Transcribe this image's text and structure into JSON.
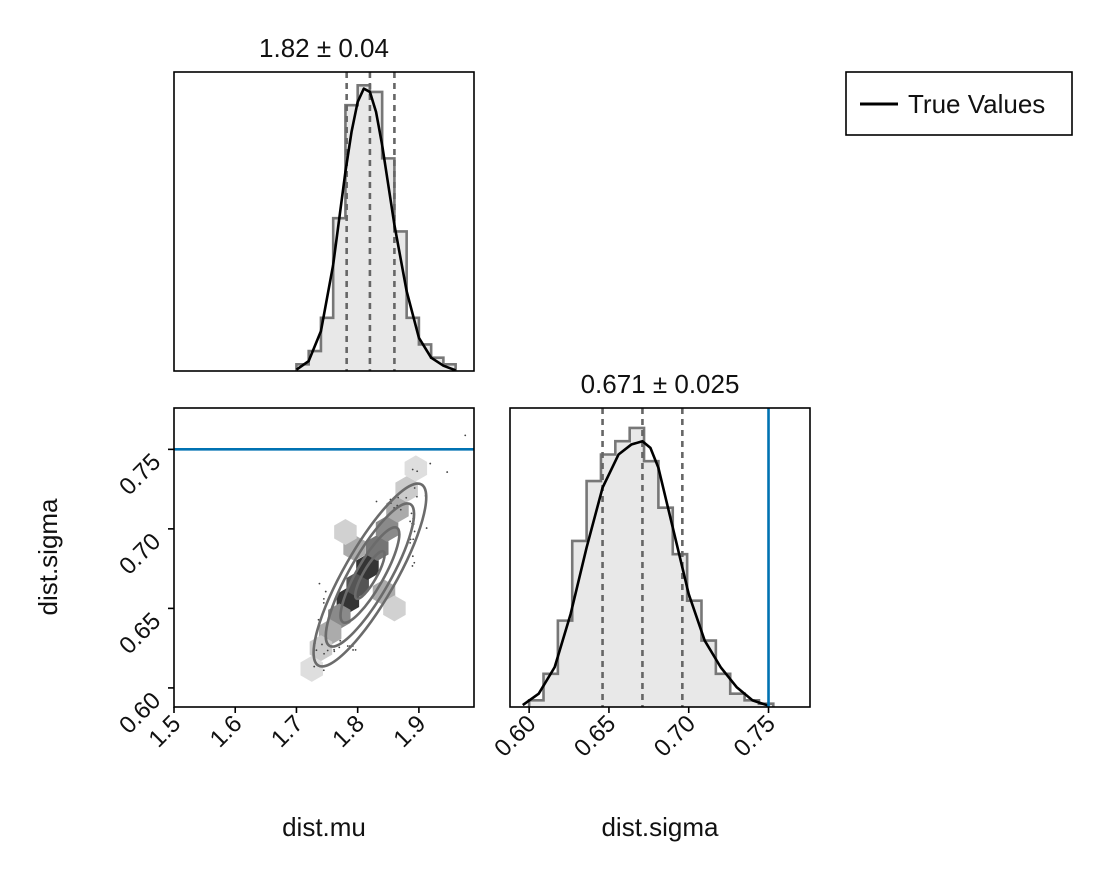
{
  "chart_data": [
    {
      "panel": "dist.mu marginal",
      "type": "histogram",
      "title": "1.82 ± 0.04",
      "xlim": [
        1.5,
        1.99
      ],
      "ylim": [
        0,
        0.45
      ],
      "quantiles": [
        1.782,
        1.82,
        1.86
      ],
      "bins": {
        "edges": [
          1.7,
          1.72,
          1.74,
          1.76,
          1.78,
          1.8,
          1.82,
          1.84,
          1.86,
          1.88,
          1.9,
          1.92,
          1.94,
          1.96
        ],
        "counts": [
          0.01,
          0.03,
          0.08,
          0.23,
          0.4,
          0.43,
          0.42,
          0.32,
          0.21,
          0.08,
          0.04,
          0.02,
          0.01
        ]
      },
      "kde": {
        "x": [
          1.7,
          1.72,
          1.74,
          1.76,
          1.78,
          1.79,
          1.8,
          1.81,
          1.82,
          1.83,
          1.84,
          1.85,
          1.86,
          1.88,
          1.9,
          1.92,
          1.94,
          1.96
        ],
        "y": [
          0.002,
          0.015,
          0.06,
          0.16,
          0.3,
          0.36,
          0.405,
          0.425,
          0.42,
          0.39,
          0.34,
          0.28,
          0.22,
          0.12,
          0.05,
          0.02,
          0.008,
          0.001
        ]
      },
      "true_value": null
    },
    {
      "panel": "dist.mu vs dist.sigma joint",
      "type": "scatter",
      "xlabel": "dist.mu",
      "ylabel": "dist.sigma",
      "xlim": [
        1.5,
        1.99
      ],
      "ylim": [
        0.588,
        0.776
      ],
      "xticks": [
        "1.5",
        "1.6",
        "1.7",
        "1.8",
        "1.9"
      ],
      "yticks": [
        "0.60",
        "0.65",
        "0.70",
        "0.75"
      ],
      "true_value_sigma": 0.75,
      "center": [
        1.82,
        0.671
      ],
      "sd": [
        0.04,
        0.025
      ],
      "correlation": 0.85,
      "density_cells": [
        {
          "x": 1.784,
          "y": 0.655,
          "level": 0.85
        },
        {
          "x": 1.8,
          "y": 0.665,
          "level": 0.7
        },
        {
          "x": 1.816,
          "y": 0.676,
          "level": 0.85
        },
        {
          "x": 1.832,
          "y": 0.688,
          "level": 0.55
        },
        {
          "x": 1.848,
          "y": 0.7,
          "level": 0.45
        },
        {
          "x": 1.77,
          "y": 0.645,
          "level": 0.45
        },
        {
          "x": 1.865,
          "y": 0.712,
          "level": 0.3
        },
        {
          "x": 1.755,
          "y": 0.635,
          "level": 0.3
        },
        {
          "x": 1.795,
          "y": 0.688,
          "level": 0.3
        },
        {
          "x": 1.843,
          "y": 0.66,
          "level": 0.3
        },
        {
          "x": 1.74,
          "y": 0.625,
          "level": 0.15
        },
        {
          "x": 1.88,
          "y": 0.725,
          "level": 0.15
        },
        {
          "x": 1.78,
          "y": 0.698,
          "level": 0.12
        },
        {
          "x": 1.86,
          "y": 0.65,
          "level": 0.12
        },
        {
          "x": 1.725,
          "y": 0.612,
          "level": 0.06
        },
        {
          "x": 1.895,
          "y": 0.738,
          "level": 0.06
        }
      ],
      "contours": [
        {
          "sd_scale": 0.6
        },
        {
          "sd_scale": 1.2
        },
        {
          "sd_scale": 1.8
        },
        {
          "sd_scale": 2.3
        }
      ]
    },
    {
      "panel": "dist.sigma marginal",
      "type": "histogram",
      "title": "0.671 ± 0.025",
      "xlabel": "dist.sigma",
      "xlim": [
        0.588,
        0.776
      ],
      "ylim": [
        0,
        0.45
      ],
      "xticks": [
        "0.60",
        "0.65",
        "0.70",
        "0.75"
      ],
      "quantiles": [
        0.646,
        0.671,
        0.696
      ],
      "true_value": 0.75,
      "bins": {
        "edges": [
          0.6,
          0.609,
          0.618,
          0.627,
          0.636,
          0.645,
          0.654,
          0.663,
          0.672,
          0.681,
          0.69,
          0.699,
          0.708,
          0.717,
          0.726,
          0.735,
          0.744,
          0.753
        ],
        "counts": [
          0.01,
          0.05,
          0.13,
          0.25,
          0.34,
          0.38,
          0.4,
          0.42,
          0.37,
          0.3,
          0.23,
          0.16,
          0.1,
          0.05,
          0.02,
          0.01,
          0.005
        ]
      },
      "kde": {
        "x": [
          0.596,
          0.606,
          0.616,
          0.626,
          0.636,
          0.646,
          0.656,
          0.664,
          0.671,
          0.676,
          0.681,
          0.69,
          0.7,
          0.71,
          0.72,
          0.73,
          0.74,
          0.75
        ],
        "y": [
          0.003,
          0.02,
          0.06,
          0.14,
          0.24,
          0.33,
          0.38,
          0.395,
          0.4,
          0.39,
          0.36,
          0.27,
          0.17,
          0.1,
          0.06,
          0.03,
          0.01,
          0.002
        ]
      }
    }
  ],
  "legend": {
    "entries": [
      {
        "label": "True Values",
        "color": "#000000"
      }
    ]
  },
  "colors": {
    "true_value_line": "#0072b2",
    "histogram_fill": "#e8e8e8",
    "histogram_step": "#777777",
    "kde": "#000000",
    "quantile_lines": "#666666",
    "contours": "#6b6b6b"
  }
}
